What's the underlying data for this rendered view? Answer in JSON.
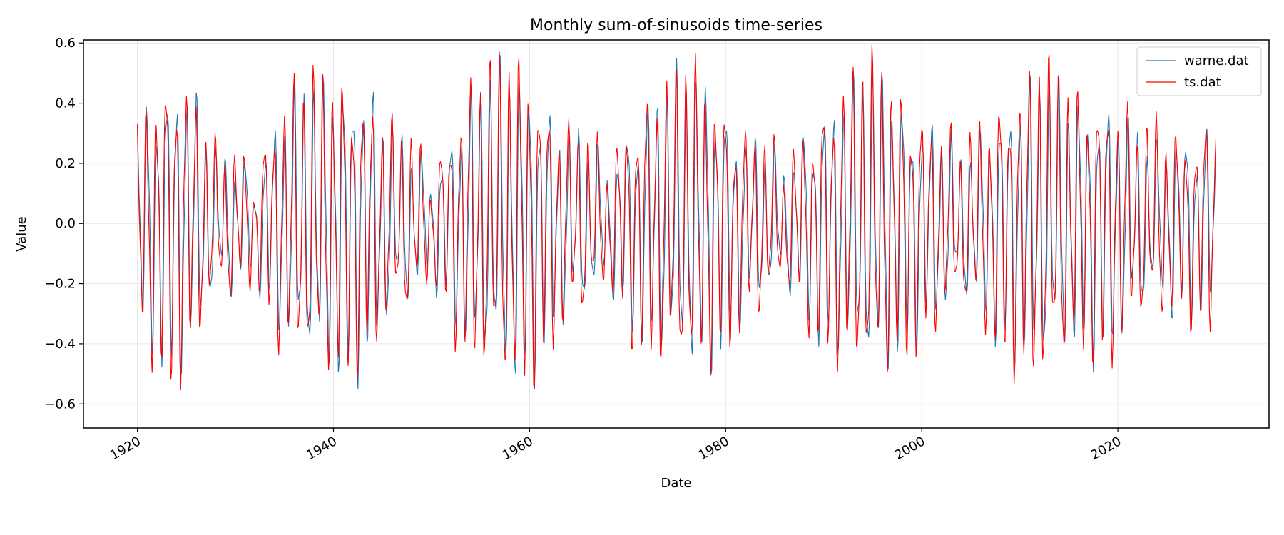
{
  "chart_data": {
    "type": "line",
    "title": "Monthly sum-of-sinusoids time-series",
    "xlabel": "Date",
    "ylabel": "Value",
    "x_ticks": [
      "1920",
      "1940",
      "1960",
      "1980",
      "2000",
      "2020"
    ],
    "y_ticks": [
      "0.6",
      "0.4",
      "0.2",
      "0.0",
      "−0.2",
      "−0.4",
      "−0.6"
    ],
    "xlim": [
      "1914-07",
      "2035-06"
    ],
    "ylim": [
      -0.68,
      0.61
    ],
    "grid": true,
    "legend_position": "top-right",
    "x_start": "1920-01",
    "x_end": "2030-01",
    "frequency": "monthly",
    "series": [
      {
        "name": "warne.dat",
        "color": "#1f77b4",
        "envelope": {
          "years": [
            1920,
            1922,
            1924,
            1926,
            1928,
            1930,
            1932,
            1934,
            1936,
            1938,
            1940,
            1942,
            1944,
            1946,
            1948,
            1950,
            1952,
            1954,
            1956,
            1958,
            1960,
            1962,
            1964,
            1966,
            1968,
            1970,
            1972,
            1974,
            1976,
            1978,
            1980,
            1982,
            1984,
            1986,
            1988,
            1990,
            1992,
            1994,
            1996,
            1998,
            2000,
            2002,
            2004,
            2006,
            2008,
            2010,
            2012,
            2014,
            2016,
            2018,
            2020,
            2022,
            2024,
            2026,
            2028,
            2030
          ],
          "amplitude": [
            0.38,
            0.45,
            0.52,
            0.42,
            0.22,
            0.22,
            0.15,
            0.35,
            0.44,
            0.48,
            0.5,
            0.52,
            0.45,
            0.3,
            0.26,
            0.16,
            0.3,
            0.45,
            0.5,
            0.55,
            0.52,
            0.4,
            0.3,
            0.28,
            0.18,
            0.32,
            0.42,
            0.48,
            0.5,
            0.52,
            0.4,
            0.28,
            0.26,
            0.18,
            0.3,
            0.4,
            0.45,
            0.5,
            0.52,
            0.44,
            0.35,
            0.32,
            0.22,
            0.3,
            0.4,
            0.46,
            0.5,
            0.46,
            0.42,
            0.44,
            0.4,
            0.3,
            0.24,
            0.32,
            0.3,
            0.32
          ]
        }
      },
      {
        "name": "ts.dat",
        "color": "#ff0000",
        "envelope": {
          "years": [
            1920,
            1922,
            1924,
            1926,
            1928,
            1930,
            1932,
            1934,
            1936,
            1938,
            1940,
            1942,
            1944,
            1946,
            1948,
            1950,
            1952,
            1954,
            1956,
            1958,
            1960,
            1962,
            1964,
            1966,
            1968,
            1970,
            1972,
            1974,
            1976,
            1978,
            1980,
            1982,
            1984,
            1986,
            1988,
            1990,
            1992,
            1994,
            1996,
            1998,
            2000,
            2002,
            2004,
            2006,
            2008,
            2010,
            2012,
            2014,
            2016,
            2018,
            2020,
            2022,
            2024,
            2026,
            2028,
            2030
          ],
          "amplitude": [
            0.38,
            0.5,
            0.55,
            0.42,
            0.24,
            0.25,
            0.18,
            0.38,
            0.48,
            0.5,
            0.52,
            0.5,
            0.42,
            0.32,
            0.3,
            0.16,
            0.34,
            0.5,
            0.54,
            0.58,
            0.56,
            0.42,
            0.32,
            0.3,
            0.2,
            0.36,
            0.46,
            0.48,
            0.56,
            0.5,
            0.42,
            0.32,
            0.3,
            0.18,
            0.32,
            0.42,
            0.48,
            0.56,
            0.54,
            0.46,
            0.4,
            0.32,
            0.26,
            0.34,
            0.44,
            0.5,
            0.58,
            0.5,
            0.44,
            0.46,
            0.44,
            0.32,
            0.34,
            0.3,
            0.32,
            0.4
          ]
        }
      }
    ]
  }
}
